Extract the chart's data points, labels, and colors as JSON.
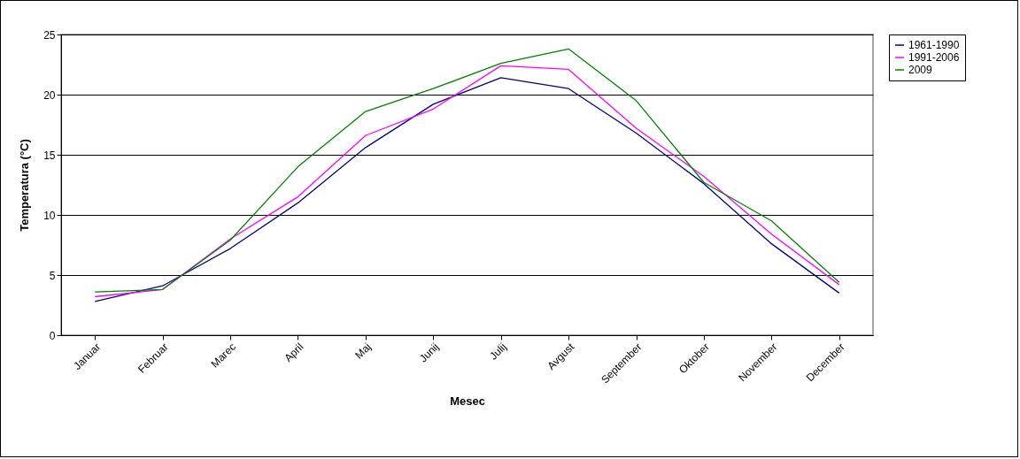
{
  "chart_data": {
    "type": "line",
    "xlabel": "Mesec",
    "ylabel": "Temperatura (°C)",
    "categories": [
      "Januar",
      "Februar",
      "Marec",
      "April",
      "Maj",
      "Junij",
      "Julij",
      "Avgust",
      "September",
      "Oktober",
      "November",
      "December"
    ],
    "series": [
      {
        "name": "1961-1990",
        "color": "#000080",
        "values": [
          2.8,
          4.1,
          7.2,
          11.0,
          15.6,
          19.2,
          21.4,
          20.5,
          16.8,
          12.6,
          7.6,
          3.5
        ]
      },
      {
        "name": "1991-2006",
        "color": "#ff00ff",
        "values": [
          3.2,
          3.8,
          8.0,
          11.5,
          16.6,
          18.8,
          22.4,
          22.1,
          17.2,
          13.2,
          8.4,
          4.2
        ]
      },
      {
        "name": "2009",
        "color": "#008000",
        "values": [
          3.6,
          3.8,
          7.9,
          14.0,
          18.6,
          20.5,
          22.6,
          23.8,
          19.5,
          12.7,
          9.5,
          4.4
        ]
      }
    ],
    "ylim": [
      0,
      25
    ],
    "yticks": [
      0,
      5,
      10,
      15,
      20,
      25
    ],
    "grid": "y",
    "legend": "right",
    "marker": "none",
    "line_style": "solid"
  }
}
